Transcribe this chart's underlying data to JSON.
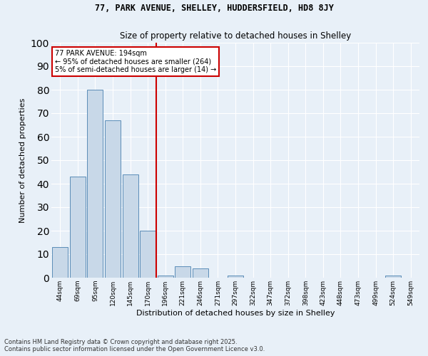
{
  "title1": "77, PARK AVENUE, SHELLEY, HUDDERSFIELD, HD8 8JY",
  "title2": "Size of property relative to detached houses in Shelley",
  "xlabel": "Distribution of detached houses by size in Shelley",
  "ylabel": "Number of detached properties",
  "bar_labels": [
    "44sqm",
    "69sqm",
    "95sqm",
    "120sqm",
    "145sqm",
    "170sqm",
    "196sqm",
    "221sqm",
    "246sqm",
    "271sqm",
    "297sqm",
    "322sqm",
    "347sqm",
    "372sqm",
    "398sqm",
    "423sqm",
    "448sqm",
    "473sqm",
    "499sqm",
    "524sqm",
    "549sqm"
  ],
  "bar_values": [
    13,
    43,
    80,
    67,
    44,
    20,
    1,
    5,
    4,
    0,
    1,
    0,
    0,
    0,
    0,
    0,
    0,
    0,
    0,
    1,
    0
  ],
  "bar_color": "#c8d8e8",
  "bar_edge_color": "#5b8db8",
  "vline_color": "#cc0000",
  "annotation_text": "77 PARK AVENUE: 194sqm\n← 95% of detached houses are smaller (264)\n5% of semi-detached houses are larger (14) →",
  "annotation_box_color": "#cc0000",
  "footnote1": "Contains HM Land Registry data © Crown copyright and database right 2025.",
  "footnote2": "Contains public sector information licensed under the Open Government Licence v3.0.",
  "background_color": "#e8f0f8",
  "ylim": [
    0,
    100
  ],
  "grid_color": "#ffffff",
  "title1_fontsize": 8.5,
  "title2_fontsize": 8.5,
  "ylabel_fontsize": 8,
  "xlabel_fontsize": 8,
  "tick_fontsize": 6.5,
  "footnote_fontsize": 6
}
